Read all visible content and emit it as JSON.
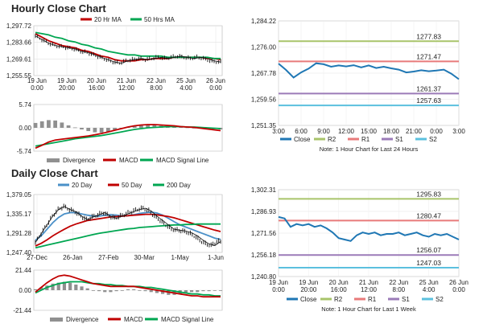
{
  "titles": {
    "hourly": "Hourly Close Chart",
    "daily": "Daily Close Chart"
  },
  "colors": {
    "close": "#1f77b4",
    "ma20": "#c00000",
    "ma50": "#00a651",
    "ma20d": "#4a90c8",
    "ma200": "#00a651",
    "macd": "#c00000",
    "signal": "#00a651",
    "divergence": "#909090",
    "r2": "#a8c46a",
    "r1": "#e87a7a",
    "s1": "#9b7bb8",
    "s2": "#5bc0de",
    "price_bars": "#111111"
  },
  "chart_data": [
    {
      "id": "hourly-price",
      "type": "line",
      "title": "",
      "ylim": [
        1255.55,
        1297.72
      ],
      "yticks": [
        "1,297.72",
        "1,283.66",
        "1,269.61",
        "1,255.55"
      ],
      "xticks": [
        "19 Jun\n0:00",
        "19 Jun\n20:00",
        "20 Jun\n16:00",
        "21 Jun\n12:00",
        "22 Jun\n8:00",
        "25 Jun\n4:00",
        "26 Jun\n0:00"
      ],
      "legend": [
        "20 Hr MA",
        "50 Hrs MA"
      ],
      "series": [
        {
          "name": "Close",
          "values": [
            1289,
            1286,
            1283,
            1281,
            1280,
            1279,
            1278,
            1276,
            1275,
            1273,
            1271,
            1269,
            1267,
            1266,
            1268,
            1269,
            1270,
            1269,
            1270,
            1271,
            1270,
            1271,
            1272,
            1271,
            1270,
            1271,
            1270,
            1268,
            1267
          ]
        },
        {
          "name": "20 Hr MA",
          "values": [
            1291,
            1288,
            1285,
            1283,
            1281,
            1280,
            1279,
            1277,
            1276,
            1274,
            1272,
            1271,
            1269,
            1268,
            1268,
            1268,
            1269,
            1269,
            1270,
            1270,
            1270,
            1271,
            1271,
            1271,
            1271,
            1271,
            1270,
            1270,
            1269
          ]
        },
        {
          "name": "50 Hrs MA",
          "values": [
            1292,
            1291,
            1290,
            1288,
            1287,
            1285,
            1284,
            1282,
            1281,
            1279,
            1278,
            1276,
            1275,
            1274,
            1273,
            1273,
            1272,
            1272,
            1272,
            1272,
            1271,
            1271,
            1271,
            1271,
            1271,
            1271,
            1271,
            1270,
            1270
          ]
        }
      ]
    },
    {
      "id": "hourly-macd",
      "type": "line",
      "title": "",
      "ylim": [
        -5.74,
        5.74
      ],
      "yticks": [
        "5.74",
        "0.00",
        "-5.74"
      ],
      "legend": [
        "Divergence",
        "MACD",
        "MACD Signal Line"
      ],
      "series": [
        {
          "name": "Divergence",
          "values": [
            1.2,
            1.6,
            1.9,
            1.8,
            1.3,
            0.6,
            0.1,
            -0.4,
            -0.8,
            -1.1,
            -1.2,
            -1.0,
            -0.6,
            -0.2,
            0.3,
            0.6,
            0.8,
            0.9,
            0.7,
            0.5,
            0.3,
            0.2,
            0.2,
            0.1,
            0.0,
            -0.1,
            -0.2,
            -0.3,
            -0.4
          ]
        },
        {
          "name": "MACD",
          "values": [
            -5.0,
            -4.3,
            -3.5,
            -3.0,
            -2.8,
            -2.6,
            -2.4,
            -2.2,
            -2.0,
            -1.7,
            -1.4,
            -1.0,
            -0.6,
            -0.2,
            0.2,
            0.5,
            0.7,
            0.8,
            0.8,
            0.7,
            0.6,
            0.5,
            0.3,
            0.2,
            0.1,
            -0.1,
            -0.3,
            -0.5,
            -0.7
          ]
        },
        {
          "name": "MACD Signal Line",
          "values": [
            -4.5,
            -4.2,
            -3.9,
            -3.6,
            -3.3,
            -3.0,
            -2.7,
            -2.5,
            -2.3,
            -2.1,
            -1.9,
            -1.6,
            -1.3,
            -1.0,
            -0.7,
            -0.4,
            -0.2,
            0.0,
            0.1,
            0.2,
            0.3,
            0.3,
            0.3,
            0.2,
            0.2,
            0.1,
            0.0,
            -0.1,
            -0.2
          ]
        }
      ]
    },
    {
      "id": "hourly-pivot",
      "type": "line",
      "title": "",
      "note": "Note: 1 Hour Chart for Last 24 Hours",
      "ylim": [
        1251.35,
        1284.22
      ],
      "yticks": [
        "1,284.22",
        "1,276.00",
        "1,267.78",
        "1,259.56",
        "1,251.35"
      ],
      "xticks": [
        "3:00",
        "6:00",
        "9:00",
        "12:00",
        "15:00",
        "18:00",
        "21:00",
        "0:00",
        "3:00"
      ],
      "levels": {
        "R2": "1277.83",
        "R1": "1271.47",
        "S1": "1261.37",
        "S2": "1257.63"
      },
      "level_values": {
        "R2": 1277.83,
        "R1": 1271.47,
        "S1": 1261.37,
        "S2": 1257.63
      },
      "legend": [
        "Close",
        "R2",
        "R1",
        "S1",
        "S2"
      ],
      "series": [
        {
          "name": "Close",
          "values": [
            1270.8,
            1268.8,
            1266.4,
            1268.0,
            1269.2,
            1270.9,
            1270.6,
            1269.8,
            1270.2,
            1269.9,
            1270.3,
            1269.6,
            1270.2,
            1269.4,
            1269.8,
            1269.3,
            1268.9,
            1268.0,
            1268.3,
            1268.7,
            1268.4,
            1268.6,
            1268.9,
            1267.6,
            1265.9
          ]
        }
      ]
    },
    {
      "id": "daily-price",
      "type": "line",
      "title": "",
      "ylim": [
        1247.4,
        1379.05
      ],
      "yticks": [
        "1,379.05",
        "1,335.17",
        "1,291.28",
        "1,247.40"
      ],
      "xticks": [
        "27-Dec",
        "26-Jan",
        "27-Feb",
        "30-Mar",
        "1-May",
        "1-Jun"
      ],
      "legend": [
        "20 Day",
        "50 Day",
        "200 Day"
      ],
      "series": [
        {
          "name": "Close",
          "values": [
            1270,
            1290,
            1310,
            1330,
            1345,
            1352,
            1345,
            1340,
            1330,
            1322,
            1328,
            1333,
            1338,
            1330,
            1325,
            1330,
            1335,
            1340,
            1345,
            1348,
            1342,
            1330,
            1320,
            1310,
            1300,
            1298,
            1296,
            1292,
            1285,
            1275,
            1267,
            1263,
            1272
          ]
        },
        {
          "name": "20 Day",
          "values": [
            1275,
            1285,
            1300,
            1315,
            1327,
            1335,
            1338,
            1338,
            1335,
            1332,
            1330,
            1330,
            1332,
            1333,
            1332,
            1330,
            1331,
            1333,
            1336,
            1338,
            1339,
            1337,
            1332,
            1325,
            1317,
            1310,
            1305,
            1300,
            1295,
            1290,
            1285,
            1280,
            1277
          ]
        },
        {
          "name": "50 Day",
          "values": [
            1262,
            1268,
            1276,
            1285,
            1293,
            1300,
            1307,
            1312,
            1316,
            1320,
            1322,
            1324,
            1326,
            1328,
            1329,
            1330,
            1331,
            1332,
            1333,
            1334,
            1334,
            1333,
            1331,
            1329,
            1326,
            1322,
            1318,
            1314,
            1310,
            1306,
            1302,
            1298,
            1295
          ]
        },
        {
          "name": "200 Day",
          "values": [
            1258,
            1261,
            1264,
            1267,
            1270,
            1273,
            1276,
            1279,
            1282,
            1285,
            1288,
            1291,
            1293,
            1295,
            1297,
            1299,
            1301,
            1302,
            1304,
            1305,
            1306,
            1307,
            1308,
            1309,
            1310,
            1310,
            1311,
            1311,
            1312,
            1312,
            1312,
            1312,
            1312
          ]
        }
      ]
    },
    {
      "id": "daily-macd",
      "type": "line",
      "title": "",
      "ylim": [
        -21.44,
        21.44
      ],
      "yticks": [
        "21.44",
        "0.00",
        "-21.44"
      ],
      "legend": [
        "Divergence",
        "MACD",
        "MACD Signal Line"
      ],
      "series": [
        {
          "name": "Divergence",
          "values": [
            1,
            3,
            5,
            7,
            8,
            9,
            8,
            6,
            4,
            2,
            0,
            -1,
            -2,
            -2,
            -1,
            0,
            1,
            1,
            0,
            -1,
            -2,
            -3,
            -4,
            -5,
            -5,
            -4,
            -3,
            -2,
            -2,
            -1,
            -1,
            0,
            0
          ]
        },
        {
          "name": "MACD",
          "values": [
            -2,
            3,
            8,
            12,
            15,
            16,
            15,
            13,
            11,
            9,
            7,
            6,
            5,
            4,
            4,
            4,
            4,
            4,
            3,
            2,
            1,
            0,
            -1,
            -2,
            -3,
            -4,
            -5,
            -6,
            -6,
            -7,
            -7,
            -7,
            -7
          ]
        },
        {
          "name": "MACD Signal Line",
          "values": [
            -3,
            0,
            3,
            5,
            7,
            8,
            9,
            9,
            9,
            8,
            7,
            7,
            6,
            6,
            5,
            5,
            4,
            4,
            4,
            3,
            3,
            2,
            1,
            0,
            -1,
            -2,
            -3,
            -4,
            -4,
            -5,
            -5,
            -6,
            -6
          ]
        }
      ]
    },
    {
      "id": "daily-pivot",
      "type": "line",
      "title": "",
      "note": "Note: 1 Hour Chart for Last 1 Week",
      "ylim": [
        1240.8,
        1302.31
      ],
      "yticks": [
        "1,302.31",
        "1,286.93",
        "1,271.56",
        "1,256.18",
        "1,240.80"
      ],
      "xticks": [
        "19 Jun\n0:00",
        "19 Jun\n20:00",
        "20 Jun\n16:00",
        "21 Jun\n12:00",
        "22 Jun\n8:00",
        "25 Jun\n4:00",
        "26 Jun\n0:00"
      ],
      "levels": {
        "R2": "1295.83",
        "R1": "1280.47",
        "S1": "1256.07",
        "S2": "1247.03"
      },
      "level_values": {
        "R2": 1295.83,
        "R1": 1280.47,
        "S1": 1256.07,
        "S2": 1247.03
      },
      "legend": [
        "Close",
        "R2",
        "R1",
        "S1",
        "S2"
      ],
      "series": [
        {
          "name": "Close",
          "values": [
            1283,
            1282,
            1276,
            1278,
            1277,
            1278,
            1276,
            1277,
            1275,
            1272,
            1268,
            1267,
            1266,
            1270,
            1272,
            1271,
            1272,
            1270,
            1271,
            1271,
            1272,
            1270,
            1271,
            1272,
            1270,
            1269,
            1271,
            1270,
            1271,
            1269,
            1267
          ]
        }
      ]
    }
  ]
}
